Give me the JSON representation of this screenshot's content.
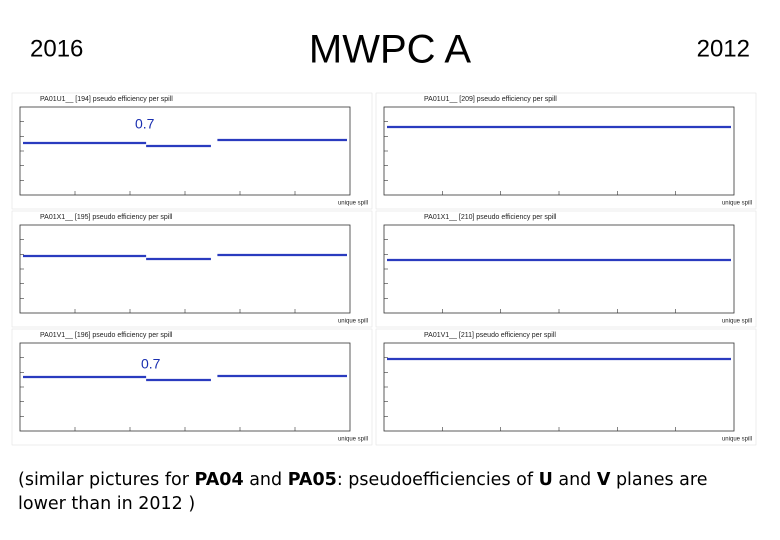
{
  "header": {
    "left_label": "2016",
    "title": "MWPC A",
    "right_label": "2012"
  },
  "panels": [
    {
      "title": "PA01U1__ [194] pseudo efficiency per spill",
      "x_label": "unique spill",
      "annotation": "0.7"
    },
    {
      "title": "PA01U1__ [209] pseudo efficiency per spill",
      "x_label": "unique spill"
    },
    {
      "title": "PA01X1__ [195] pseudo efficiency per spill",
      "x_label": "unique spill"
    },
    {
      "title": "PA01X1__ [210] pseudo efficiency per spill",
      "x_label": "unique spill"
    },
    {
      "title": "PA01V1__ [196] pseudo efficiency per spill",
      "x_label": "unique spill",
      "annotation": "0.7"
    },
    {
      "title": "PA01V1__ [211] pseudo efficiency per spill",
      "x_label": "unique spill"
    }
  ],
  "footer": [
    {
      "text": "(similar pictures for ",
      "bold": false
    },
    {
      "text": "PA04",
      "bold": true
    },
    {
      "text": " and ",
      "bold": false
    },
    {
      "text": "PA05",
      "bold": true
    },
    {
      "text": ": pseudoefficiencies of ",
      "bold": false
    },
    {
      "text": "U",
      "bold": true
    },
    {
      "text": " and ",
      "bold": false
    },
    {
      "text": "V",
      "bold": true
    },
    {
      "text": " planes are lower than in 2012 )",
      "bold": false
    }
  ]
}
